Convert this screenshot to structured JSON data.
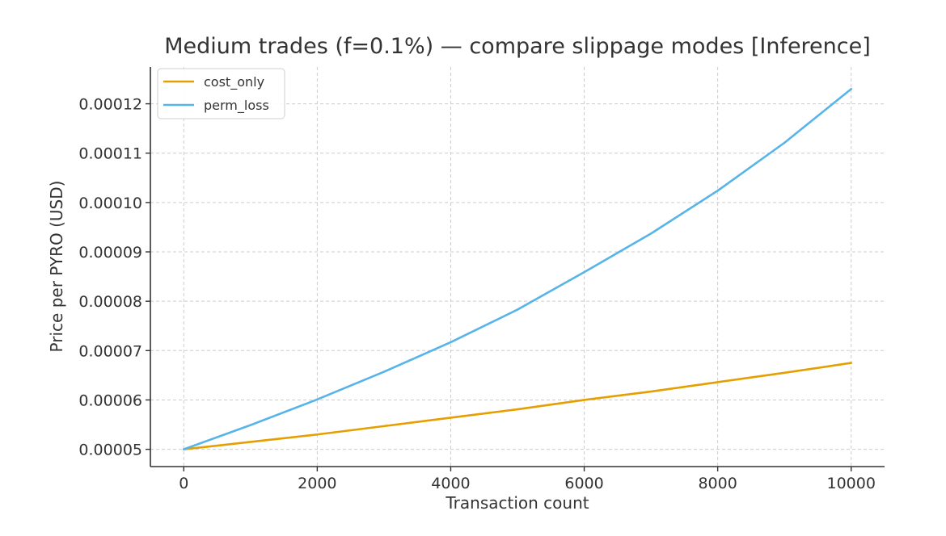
{
  "chart_data": {
    "type": "line",
    "title": "Medium trades (f=0.1%) — compare slippage modes [Inference]",
    "xlabel": "Transaction count",
    "ylabel": "Price per PYRO (USD)",
    "xlim": [
      -500,
      10500
    ],
    "ylim": [
      4.65e-05,
      0.0001268
    ],
    "xticks": [
      0,
      2000,
      4000,
      6000,
      8000,
      10000
    ],
    "xtick_labels": [
      "0",
      "2000",
      "4000",
      "6000",
      "8000",
      "10000"
    ],
    "yticks": [
      5e-05,
      6e-05,
      7e-05,
      8e-05,
      9e-05,
      0.0001,
      0.00011,
      0.00012
    ],
    "ytick_labels": [
      "0.00005",
      "0.00006",
      "0.00007",
      "0.00008",
      "0.00009",
      "0.00010",
      "0.00011",
      "0.00012"
    ],
    "grid": true,
    "legend_position": "top-left",
    "x": [
      0,
      1000,
      2000,
      3000,
      4000,
      5000,
      6000,
      7000,
      8000,
      9000,
      10000
    ],
    "series": [
      {
        "name": "cost_only",
        "color": "#E69F00",
        "values": [
          5e-05,
          5.15e-05,
          5.3e-05,
          5.47e-05,
          5.64e-05,
          5.81e-05,
          6e-05,
          6.17e-05,
          6.36e-05,
          6.55e-05,
          6.75e-05
        ]
      },
      {
        "name": "perm_loss",
        "color": "#56B4E9",
        "values": [
          5e-05,
          5.49e-05,
          6.01e-05,
          6.57e-05,
          7.17e-05,
          7.83e-05,
          8.59e-05,
          9.37e-05,
          0.0001024,
          0.0001121,
          0.000123
        ]
      }
    ]
  }
}
